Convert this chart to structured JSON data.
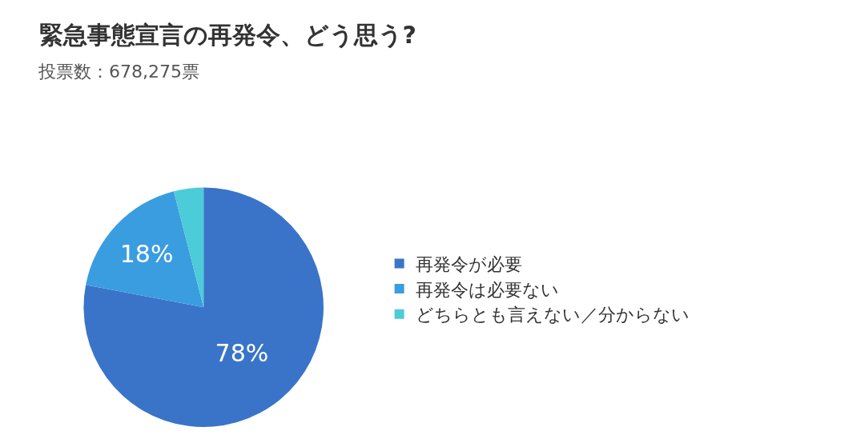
{
  "chart_data": {
    "type": "pie",
    "title": "緊急事態宣言の再発令、どう思う?",
    "subtitle": "投票数：678,275票",
    "categories": [
      "再発令が必要",
      "再発令は必要ない",
      "どちらとも言えない／分からない"
    ],
    "values": [
      78,
      18,
      4
    ],
    "value_labels": [
      "78%",
      "18%",
      null
    ],
    "colors": [
      "#3a74c9",
      "#3a9de0",
      "#4ccbd8"
    ],
    "legend": "right"
  }
}
